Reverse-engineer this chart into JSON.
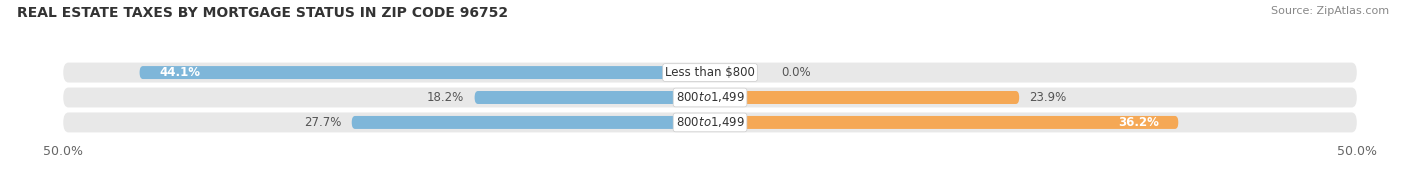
{
  "title": "REAL ESTATE TAXES BY MORTGAGE STATUS IN ZIP CODE 96752",
  "source": "Source: ZipAtlas.com",
  "rows": [
    {
      "label": "Less than $800",
      "without_mortgage": 44.1,
      "with_mortgage": 0.0
    },
    {
      "label": "$800 to $1,499",
      "without_mortgage": 18.2,
      "with_mortgage": 23.9
    },
    {
      "label": "$800 to $1,499",
      "without_mortgage": 27.7,
      "with_mortgage": 36.2
    }
  ],
  "color_without": "#7EB6D9",
  "color_with": "#F5A855",
  "color_without_light": "#B8D7EE",
  "xlim": [
    -50,
    50
  ],
  "bar_height": 0.52,
  "background_bar": "#E8E8E8",
  "background_fig": "#FFFFFF",
  "title_fontsize": 10,
  "source_fontsize": 8,
  "label_fontsize": 8.5,
  "pct_fontsize": 8.5,
  "tick_fontsize": 9,
  "legend_fontsize": 9
}
